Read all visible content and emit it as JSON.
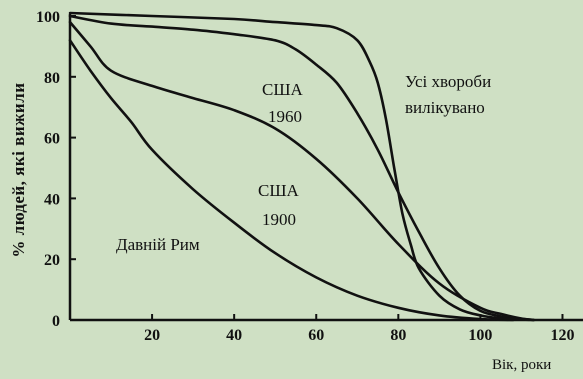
{
  "chart_data": {
    "type": "line",
    "title": "",
    "xlabel": "Вік, роки",
    "ylabel": "% людей, які вижили",
    "xlim": [
      0,
      125
    ],
    "ylim": [
      0,
      102
    ],
    "x_ticks": [
      "20",
      "40",
      "60",
      "80",
      "100",
      "120"
    ],
    "y_ticks": [
      "0",
      "20",
      "40",
      "60",
      "80",
      "100"
    ],
    "grid": false,
    "series": [
      {
        "name": "Давній Рим",
        "x": [
          0,
          5,
          10,
          15,
          20,
          30,
          40,
          50,
          60,
          70,
          80,
          90,
          100,
          108
        ],
        "y": [
          92,
          82,
          73,
          65,
          56,
          43,
          32,
          22,
          14,
          8,
          4,
          1.5,
          0.3,
          0
        ]
      },
      {
        "name": "США 1900",
        "x": [
          0,
          5,
          10,
          20,
          30,
          40,
          50,
          60,
          70,
          80,
          90,
          100,
          105,
          110,
          113
        ],
        "y": [
          98,
          90,
          82,
          77,
          73,
          69,
          63,
          53,
          40,
          25,
          12,
          4,
          2,
          0.5,
          0
        ]
      },
      {
        "name": "США 1960",
        "x": [
          0,
          10,
          20,
          30,
          40,
          50,
          55,
          60,
          65,
          70,
          75,
          80,
          85,
          90,
          95,
          100,
          105,
          110,
          113
        ],
        "y": [
          100,
          97.5,
          96.5,
          95.5,
          94,
          92,
          89,
          84,
          78,
          68,
          56,
          42,
          29,
          17,
          8,
          3,
          1.2,
          0.4,
          0
        ]
      },
      {
        "name": "Усі хвороби вилікувано",
        "x": [
          0,
          20,
          40,
          50,
          60,
          65,
          70,
          73,
          75,
          77,
          79,
          81,
          83,
          85,
          90,
          95,
          100,
          105,
          110,
          113
        ],
        "y": [
          101,
          100,
          99,
          98,
          97,
          96,
          92,
          85,
          78,
          66,
          50,
          35,
          25,
          17,
          8,
          3.5,
          1.5,
          0.5,
          0.2,
          0
        ]
      }
    ],
    "annotations": {
      "rome": "Давній Рим",
      "usa1900_country": "США",
      "usa1900_year": "1900",
      "usa1960_country": "США",
      "usa1960_year": "1960",
      "cured_line1": "Усі хвороби",
      "cured_line2": "вилікувано"
    },
    "colors": {
      "background": "#cfe0c4",
      "line": "#111111"
    }
  }
}
